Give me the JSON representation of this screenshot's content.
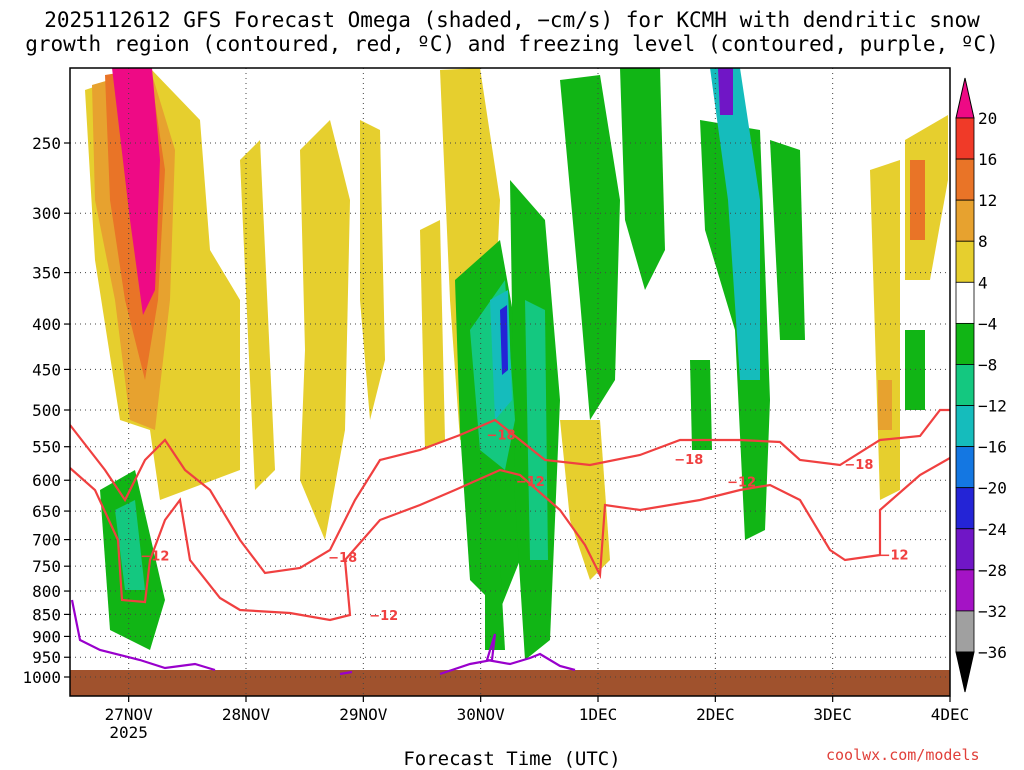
{
  "chart_data": {
    "type": "heatmap",
    "title_line1": "2025112612 GFS Forecast Omega (shaded, −cm/s) for KCMH with dendritic snow",
    "title_line2": "growth region (contoured, red, ºC) and freezing level (contoured, purple, ºC)",
    "xlabel": "Forecast Time (UTC)",
    "credit": "coolwx.com/models",
    "x_range_days": [
      -0.5,
      7.0
    ],
    "x_ticks": [
      {
        "day": 0,
        "label": "27NOV",
        "sub": "2025"
      },
      {
        "day": 1,
        "label": "28NOV",
        "sub": ""
      },
      {
        "day": 2,
        "label": "29NOV",
        "sub": ""
      },
      {
        "day": 3,
        "label": "30NOV",
        "sub": ""
      },
      {
        "day": 4,
        "label": "1DEC",
        "sub": ""
      },
      {
        "day": 5,
        "label": "2DEC",
        "sub": ""
      },
      {
        "day": 6,
        "label": "3DEC",
        "sub": ""
      },
      {
        "day": 7,
        "label": "4DEC",
        "sub": ""
      }
    ],
    "y_ticks_hpa": [
      "250",
      "300",
      "350",
      "400",
      "450",
      "500",
      "550",
      "600",
      "650",
      "700",
      "750",
      "800",
      "850",
      "900",
      "950",
      "1000"
    ],
    "colorbar": {
      "labels": [
        "20",
        "16",
        "12",
        "8",
        "4",
        "−4",
        "−8",
        "−12",
        "−16",
        "−20",
        "−24",
        "−28",
        "−32",
        "−36"
      ],
      "colors": [
        "#ee0a85",
        "#f03a28",
        "#e97427",
        "#e7a22f",
        "#e6cf2e",
        "#ffffff",
        "#11b515",
        "#14c880",
        "#15bcbc",
        "#1477e2",
        "#2424d6",
        "#7016c6",
        "#a413c5",
        "#a0a0a0",
        "#000000"
      ]
    },
    "contour_labels": [
      {
        "text": "−12",
        "day": 0.1,
        "hpa": 735
      },
      {
        "text": "−18",
        "day": 1.7,
        "hpa": 738
      },
      {
        "text": "−12",
        "day": 2.05,
        "hpa": 858
      },
      {
        "text": "−18",
        "day": 3.05,
        "hpa": 537
      },
      {
        "text": "−12",
        "day": 3.3,
        "hpa": 606
      },
      {
        "text": "−18",
        "day": 4.65,
        "hpa": 572
      },
      {
        "text": "−12",
        "day": 5.1,
        "hpa": 607
      },
      {
        "text": "−18",
        "day": 6.1,
        "hpa": 580
      },
      {
        "text": "−12",
        "day": 6.4,
        "hpa": 733
      }
    ],
    "surface_color": "#a0522d",
    "dgz_color": "#f04040",
    "freezing_color": "#9900cc"
  }
}
